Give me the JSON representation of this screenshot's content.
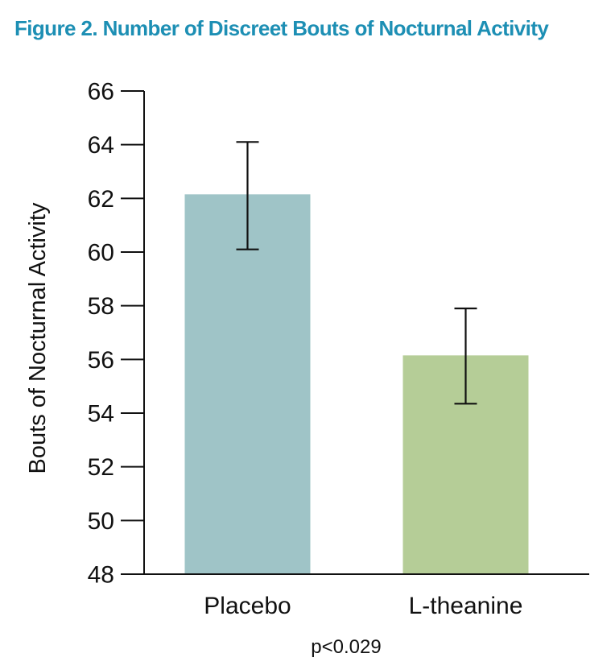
{
  "chart_data": {
    "type": "bar",
    "title": "Figure 2. Number of Discreet Bouts of Nocturnal Activity",
    "xlabel": "",
    "ylabel": "Bouts of Nocturnal Activity",
    "categories": [
      "Placebo",
      "L-theanine"
    ],
    "values": [
      62.15,
      56.15
    ],
    "error_low": [
      60.1,
      54.35
    ],
    "error_high": [
      64.1,
      57.9
    ],
    "ylim": [
      48,
      66
    ],
    "yticks": [
      48,
      50,
      52,
      54,
      56,
      58,
      60,
      62,
      64,
      66
    ],
    "bar_colors": [
      "#9fc4c7",
      "#b5cd97"
    ],
    "annotation": "p<0.029",
    "grid": false,
    "legend": "none"
  },
  "colors": {
    "title": "#1d8fb4",
    "axis": "#111111"
  }
}
